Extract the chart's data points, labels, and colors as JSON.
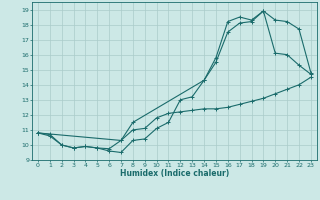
{
  "title": "",
  "xlabel": "Humidex (Indice chaleur)",
  "bg_color": "#cce8e6",
  "grid_color": "#aaccca",
  "line_color": "#1a6b6b",
  "spine_color": "#1a6b6b",
  "xlim": [
    -0.5,
    23.5
  ],
  "ylim": [
    9,
    19.5
  ],
  "xticks": [
    0,
    1,
    2,
    3,
    4,
    5,
    6,
    7,
    8,
    9,
    10,
    11,
    12,
    13,
    14,
    15,
    16,
    17,
    18,
    19,
    20,
    21,
    22,
    23
  ],
  "yticks": [
    9,
    10,
    11,
    12,
    13,
    14,
    15,
    16,
    17,
    18,
    19
  ],
  "line1_x": [
    0,
    1,
    2,
    3,
    4,
    5,
    6,
    7,
    8,
    9,
    10,
    11,
    12,
    13,
    14,
    15,
    16,
    17,
    18,
    19,
    20,
    21,
    22,
    23
  ],
  "line1_y": [
    10.8,
    10.6,
    10.0,
    9.8,
    9.9,
    9.8,
    9.6,
    9.5,
    10.3,
    10.4,
    11.1,
    11.5,
    13.0,
    13.2,
    14.3,
    15.5,
    17.5,
    18.1,
    18.2,
    18.9,
    18.3,
    18.2,
    17.7,
    14.8
  ],
  "line2_x": [
    0,
    1,
    2,
    3,
    4,
    5,
    6,
    7,
    8,
    9,
    10,
    11,
    12,
    13,
    14,
    15,
    16,
    17,
    18,
    19,
    20,
    21,
    22,
    23
  ],
  "line2_y": [
    10.8,
    10.7,
    10.0,
    9.8,
    9.9,
    9.8,
    9.75,
    10.3,
    11.0,
    11.1,
    11.8,
    12.1,
    12.2,
    12.3,
    12.4,
    12.4,
    12.5,
    12.7,
    12.9,
    13.1,
    13.4,
    13.7,
    14.0,
    14.5
  ],
  "line3_x": [
    0,
    7,
    8,
    14,
    15,
    16,
    17,
    18,
    19,
    20,
    21,
    22,
    23
  ],
  "line3_y": [
    10.8,
    10.3,
    11.5,
    14.3,
    15.8,
    18.2,
    18.5,
    18.3,
    18.9,
    16.1,
    16.0,
    15.3,
    14.7
  ]
}
